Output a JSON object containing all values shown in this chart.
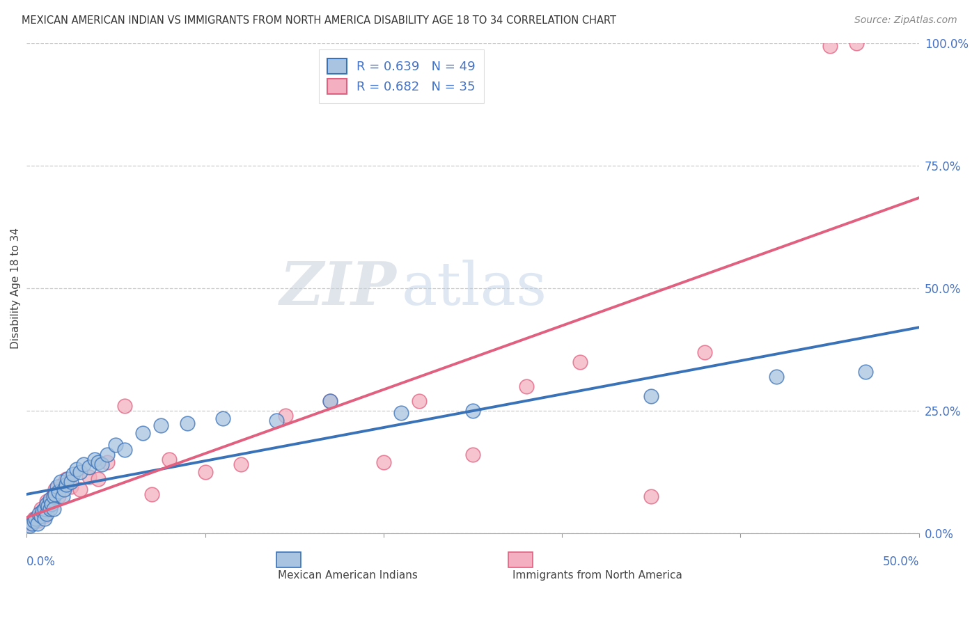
{
  "title": "MEXICAN AMERICAN INDIAN VS IMMIGRANTS FROM NORTH AMERICA DISABILITY AGE 18 TO 34 CORRELATION CHART",
  "source": "Source: ZipAtlas.com",
  "ylabel": "Disability Age 18 to 34",
  "ytick_labels": [
    "0.0%",
    "25.0%",
    "50.0%",
    "75.0%",
    "100.0%"
  ],
  "ytick_values": [
    0,
    25,
    50,
    75,
    100
  ],
  "xtick_labels": [
    "0.0%",
    "50.0%"
  ],
  "xlim": [
    0,
    50
  ],
  "ylim": [
    0,
    100
  ],
  "blue_R": 0.639,
  "blue_N": 49,
  "pink_R": 0.682,
  "pink_N": 35,
  "blue_scatter_color": "#a8c4e0",
  "blue_line_color": "#3a72b8",
  "pink_scatter_color": "#f4b0c0",
  "pink_line_color": "#e06080",
  "label_color": "#4472c4",
  "legend_label_blue": "Mexican American Indians",
  "legend_label_pink": "Immigrants from North America",
  "watermark_zip": "ZIP",
  "watermark_atlas": "atlas",
  "blue_scatter_x": [
    0.2,
    0.3,
    0.4,
    0.5,
    0.6,
    0.7,
    0.8,
    0.9,
    1.0,
    1.0,
    1.1,
    1.1,
    1.2,
    1.3,
    1.3,
    1.4,
    1.5,
    1.5,
    1.6,
    1.7,
    1.8,
    1.9,
    2.0,
    2.1,
    2.2,
    2.3,
    2.5,
    2.6,
    2.8,
    3.0,
    3.2,
    3.5,
    3.8,
    4.0,
    4.2,
    4.5,
    5.0,
    5.5,
    6.5,
    7.5,
    9.0,
    11.0,
    14.0,
    17.0,
    21.0,
    25.0,
    35.0,
    42.0,
    47.0
  ],
  "blue_scatter_y": [
    1.5,
    2.0,
    2.5,
    3.0,
    2.0,
    4.0,
    3.5,
    4.5,
    3.0,
    5.0,
    4.0,
    6.0,
    5.5,
    5.0,
    7.0,
    6.0,
    7.5,
    5.0,
    8.0,
    9.5,
    8.5,
    10.5,
    7.5,
    9.0,
    10.0,
    11.0,
    10.5,
    12.0,
    13.0,
    12.5,
    14.0,
    13.5,
    15.0,
    14.5,
    14.0,
    16.0,
    18.0,
    17.0,
    20.5,
    22.0,
    22.5,
    23.5,
    23.0,
    27.0,
    24.5,
    25.0,
    28.0,
    32.0,
    33.0
  ],
  "pink_scatter_x": [
    0.2,
    0.4,
    0.6,
    0.8,
    0.9,
    1.0,
    1.1,
    1.2,
    1.4,
    1.5,
    1.6,
    1.8,
    2.0,
    2.2,
    2.5,
    3.0,
    3.5,
    4.0,
    4.5,
    5.5,
    7.0,
    8.0,
    10.0,
    12.0,
    14.5,
    17.0,
    20.0,
    22.0,
    25.0,
    28.0,
    31.0,
    35.0,
    38.0,
    45.0,
    46.5
  ],
  "pink_scatter_y": [
    2.0,
    3.0,
    2.5,
    5.0,
    4.0,
    3.5,
    6.5,
    5.5,
    7.0,
    8.0,
    9.0,
    7.5,
    10.0,
    11.0,
    9.5,
    9.0,
    11.5,
    11.0,
    14.5,
    26.0,
    8.0,
    15.0,
    12.5,
    14.0,
    24.0,
    27.0,
    14.5,
    27.0,
    16.0,
    30.0,
    35.0,
    7.5,
    37.0,
    99.5,
    100.0
  ]
}
